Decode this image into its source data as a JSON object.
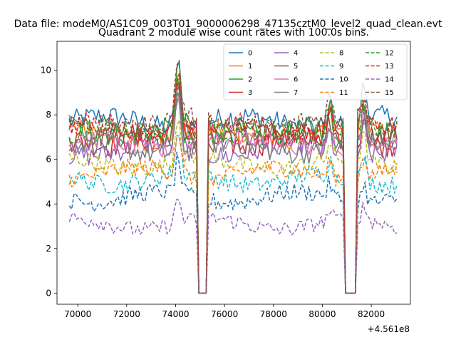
{
  "chart_data": {
    "type": "line",
    "suptitle": "Data file: modeM0/AS1C09_003T01_9000006298_47135cztM0_level2_quad_clean.evt",
    "title": "Quadrant 2 module wise count rates with 100.0s bins.",
    "xlabel": "",
    "ylabel": "",
    "x_offset_label": "+4.561e8",
    "xlim": [
      69150,
      83600
    ],
    "ylim": [
      -0.5,
      11.3
    ],
    "xticks": [
      70000,
      72000,
      74000,
      76000,
      78000,
      80000,
      82000
    ],
    "yticks": [
      0,
      2,
      4,
      6,
      8,
      10
    ],
    "legend": {
      "position": "top-right",
      "columns": 4
    },
    "x_range": {
      "start": 69650,
      "end": 83050,
      "step": 100
    },
    "gaps": [
      [
        74950,
        75250
      ],
      [
        80950,
        81350
      ]
    ],
    "flares": [
      {
        "center": 74100,
        "width": 160,
        "amp": 2.8
      },
      {
        "center": 80300,
        "width": 130,
        "amp": 1.0
      },
      {
        "center": 81700,
        "width": 150,
        "amp": 1.4
      }
    ],
    "series": [
      {
        "name": "0",
        "color": "#1f77b4",
        "dash": "solid",
        "mean": 7.7,
        "noise": 0.3
      },
      {
        "name": "1",
        "color": "#ff7f0e",
        "dash": "solid",
        "mean": 7.1,
        "noise": 0.3
      },
      {
        "name": "2",
        "color": "#2ca02c",
        "dash": "solid",
        "mean": 7.3,
        "noise": 0.35
      },
      {
        "name": "3",
        "color": "#d62728",
        "dash": "solid",
        "mean": 6.9,
        "noise": 0.35
      },
      {
        "name": "4",
        "color": "#9467bd",
        "dash": "solid",
        "mean": 6.4,
        "noise": 0.3
      },
      {
        "name": "5",
        "color": "#8c564b",
        "dash": "solid",
        "mean": 7.0,
        "noise": 0.3
      },
      {
        "name": "6",
        "color": "#e377c2",
        "dash": "solid",
        "mean": 6.7,
        "noise": 0.3
      },
      {
        "name": "7",
        "color": "#7f7f7f",
        "dash": "solid",
        "mean": 6.5,
        "noise": 0.3
      },
      {
        "name": "8",
        "color": "#bcbd22",
        "dash": "dashed",
        "mean": 5.8,
        "noise": 0.25
      },
      {
        "name": "9",
        "color": "#17becf",
        "dash": "dashed",
        "mean": 5.1,
        "noise": 0.25
      },
      {
        "name": "10",
        "color": "#1f77b4",
        "dash": "dashed",
        "mean": 4.3,
        "noise": 0.25
      },
      {
        "name": "11",
        "color": "#ff7f0e",
        "dash": "dashed",
        "mean": 5.4,
        "noise": 0.25
      },
      {
        "name": "12",
        "color": "#2ca02c",
        "dash": "dashed",
        "mean": 7.2,
        "noise": 0.3
      },
      {
        "name": "13",
        "color": "#d62728",
        "dash": "dashed",
        "mean": 7.4,
        "noise": 0.3
      },
      {
        "name": "14",
        "color": "#9467bd",
        "dash": "dashed",
        "mean": 3.1,
        "noise": 0.22
      },
      {
        "name": "15",
        "color": "#8c564b",
        "dash": "dashed",
        "mean": 7.6,
        "noise": 0.3
      }
    ]
  }
}
